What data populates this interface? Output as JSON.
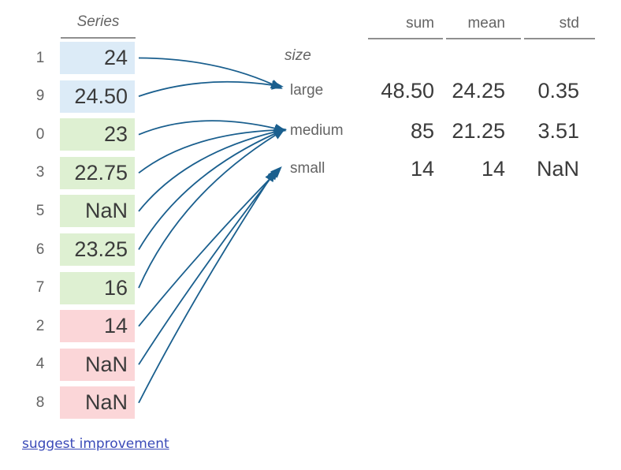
{
  "series": {
    "title": "Series",
    "rows": [
      {
        "index": "1",
        "value": "24",
        "group": "large"
      },
      {
        "index": "9",
        "value": "24.50",
        "group": "large"
      },
      {
        "index": "0",
        "value": "23",
        "group": "medium"
      },
      {
        "index": "3",
        "value": "22.75",
        "group": "medium"
      },
      {
        "index": "5",
        "value": "NaN",
        "group": "medium"
      },
      {
        "index": "6",
        "value": "23.25",
        "group": "medium"
      },
      {
        "index": "7",
        "value": "16",
        "group": "medium"
      },
      {
        "index": "2",
        "value": "14",
        "group": "small"
      },
      {
        "index": "4",
        "value": "NaN",
        "group": "small"
      },
      {
        "index": "8",
        "value": "NaN",
        "group": "small"
      }
    ]
  },
  "groups_table": {
    "index_label": "size",
    "columns": [
      "sum",
      "mean",
      "std"
    ],
    "rows": [
      {
        "group": "large",
        "sum": "48.50",
        "mean": "24.25",
        "std": "0.35"
      },
      {
        "group": "medium",
        "sum": "85",
        "mean": "21.25",
        "std": "3.51"
      },
      {
        "group": "small",
        "sum": "14",
        "mean": "14",
        "std": "NaN"
      }
    ]
  },
  "footer": {
    "link_label": "suggest improvement"
  },
  "colors": {
    "cell_large": "#dcebf7",
    "cell_medium": "#def0d2",
    "cell_small": "#fbd6d8",
    "arrow": "#1a5f8e",
    "rule": "#8f8f8f",
    "label_text": "#646464",
    "value_text": "#3b3b3b",
    "link": "#3a4ab8"
  }
}
